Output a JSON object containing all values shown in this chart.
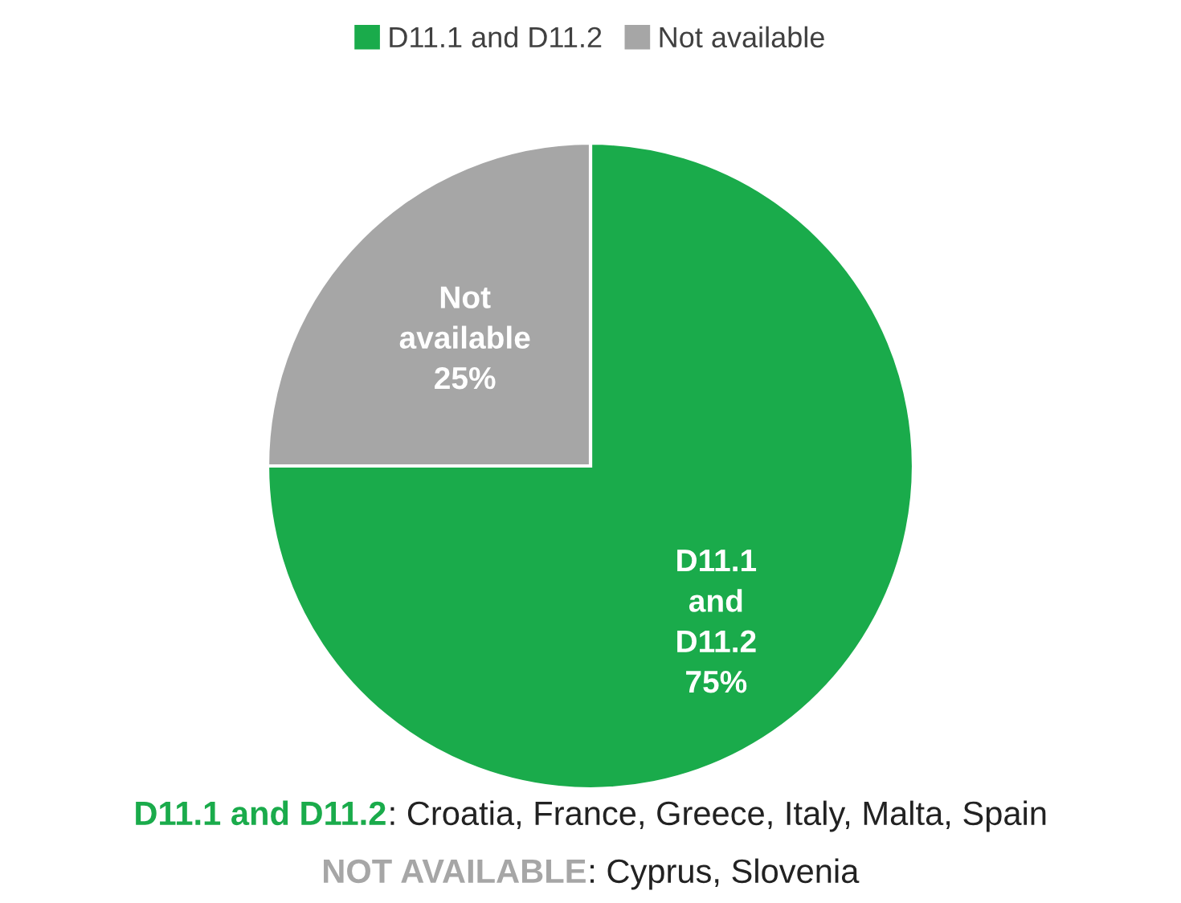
{
  "chart_data": {
    "type": "pie",
    "categories": [
      "D11.1 and D11.2",
      "Not available"
    ],
    "values": [
      75,
      25
    ],
    "colors": [
      "#1aab4b",
      "#a6a6a6"
    ],
    "value_labels": [
      "75%",
      "25%"
    ],
    "legend": "top",
    "annotations": [
      "D11.1 and D11.2: Croatia, France, Greece, Italy, Malta, Spain",
      "NOT AVAILABLE: Cyprus, Slovenia"
    ]
  }
}
